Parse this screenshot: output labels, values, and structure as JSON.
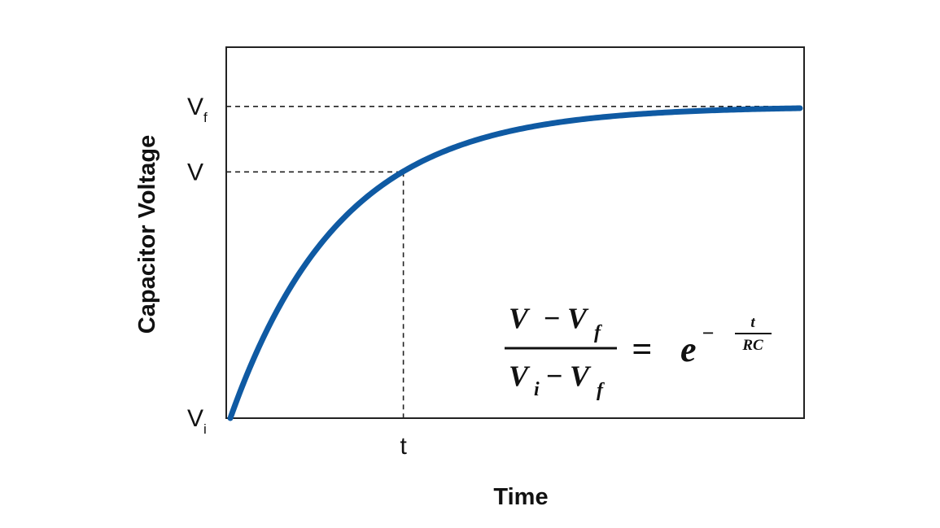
{
  "chart_data": {
    "type": "line",
    "title": "",
    "xlabel": "Time",
    "ylabel": "Capacitor Voltage",
    "x_ticks": [
      {
        "main": "t",
        "sub": "",
        "value": 2.43
      }
    ],
    "y_ticks": [
      {
        "main": "V",
        "sub": "f",
        "value": 1.0
      },
      {
        "main": "V",
        "sub": "",
        "value": 0.79
      },
      {
        "main": "V",
        "sub": "i",
        "value": 0.0
      }
    ],
    "xlim": [
      0,
      8
    ],
    "ylim": [
      0,
      1.19
    ],
    "series": [
      {
        "name": "",
        "function": "V_f + (V_i - V_f) * exp(-t/RC)",
        "time_constant": 1.55
      }
    ],
    "marker": {
      "x": 2.43,
      "y": 0.79
    },
    "reference_lines": [
      {
        "y": 1.0
      }
    ],
    "grid": false,
    "legend": "none",
    "colors": {
      "curve": "#0f5aa3",
      "axis": "#222222"
    },
    "equation": {
      "num_left": "V",
      "num_minus": "−",
      "num_right": "V",
      "num_right_sub": "f",
      "den_left": "V",
      "den_left_sub": "i",
      "den_minus": "−",
      "den_right": "V",
      "den_right_sub": "f",
      "equals": "=",
      "base": "e",
      "exp_minus": "−",
      "exp_num": "t",
      "exp_den": "RC"
    }
  }
}
